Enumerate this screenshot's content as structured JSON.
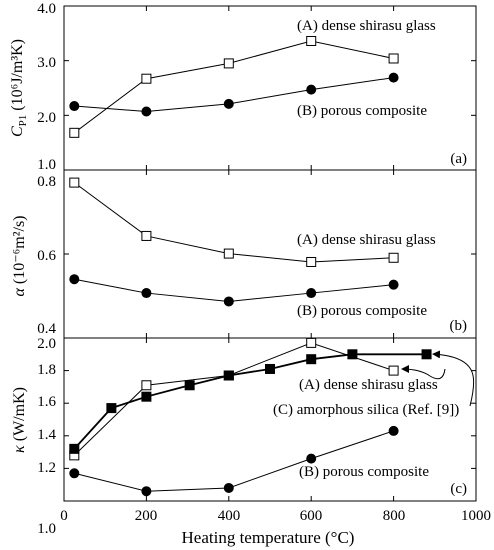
{
  "chart_data": [
    {
      "type": "line",
      "panel_label": "(a)",
      "ylabel": {
        "main": "C",
        "sub": "P1",
        "units": " (10⁶J/m³K)"
      },
      "xlim": [
        0,
        1000
      ],
      "ylim": [
        1.0,
        4.0
      ],
      "yticks": [
        "1.0",
        "2.0",
        "3.0",
        "4.0"
      ],
      "ytick_values": [
        1.0,
        2.0,
        3.0,
        4.0
      ],
      "grid": false,
      "series": [
        {
          "name": "(A) dense shirasu glass",
          "marker": "open-square",
          "x": [
            25,
            200,
            400,
            600,
            800
          ],
          "y": [
            1.68,
            2.67,
            2.95,
            3.36,
            3.04
          ]
        },
        {
          "name": "(B) porous composite",
          "marker": "filled-circle",
          "x": [
            25,
            200,
            400,
            600,
            800
          ],
          "y": [
            2.17,
            2.07,
            2.21,
            2.47,
            2.69
          ]
        }
      ]
    },
    {
      "type": "line",
      "panel_label": "(b)",
      "ylabel": {
        "main": "α",
        "units": " (10⁻⁶m²/s)"
      },
      "xlim": [
        0,
        1000
      ],
      "ylim": [
        0.4,
        0.8
      ],
      "yticks": [
        "0.4",
        "0.6",
        "0.8"
      ],
      "ytick_values": [
        0.4,
        0.6,
        0.8
      ],
      "grid": false,
      "series": [
        {
          "name": "(A) dense shirasu glass",
          "marker": "open-square",
          "x": [
            25,
            200,
            400,
            600,
            800
          ],
          "y": [
            0.77,
            0.643,
            0.601,
            0.581,
            0.591
          ]
        },
        {
          "name": "(B) porous composite",
          "marker": "filled-circle",
          "x": [
            25,
            200,
            400,
            600,
            800
          ],
          "y": [
            0.54,
            0.507,
            0.487,
            0.507,
            0.527
          ]
        }
      ]
    },
    {
      "type": "line",
      "panel_label": "(c)",
      "ylabel": {
        "main": "κ",
        "units": " (W/mK)"
      },
      "xlabel": "Heating temperature (°C)",
      "xlim": [
        0,
        1000
      ],
      "xticks": [
        "0",
        "200",
        "400",
        "600",
        "800",
        "1000"
      ],
      "xtick_values": [
        0,
        200,
        400,
        600,
        800,
        1000
      ],
      "ylim": [
        1.0,
        2.0
      ],
      "yticks": [
        "1.0",
        "1.2",
        "1.4",
        "1.6",
        "1.8",
        "2.0"
      ],
      "ytick_values": [
        1.0,
        1.2,
        1.4,
        1.6,
        1.8,
        2.0
      ],
      "grid": false,
      "series": [
        {
          "name": "(A) dense shirasu glass",
          "marker": "open-square",
          "x": [
            25,
            200,
            400,
            600,
            800
          ],
          "y": [
            1.28,
            1.71,
            1.77,
            1.97,
            1.8
          ]
        },
        {
          "name": "(C) amorphous silica (Ref. [9])",
          "marker": "filled-square",
          "x": [
            25,
            115,
            200,
            305,
            400,
            500,
            600,
            700,
            880
          ],
          "y": [
            1.32,
            1.57,
            1.64,
            1.71,
            1.77,
            1.81,
            1.87,
            1.9,
            1.9
          ]
        },
        {
          "name": "(B) porous composite",
          "marker": "filled-circle",
          "x": [
            25,
            200,
            400,
            600,
            800
          ],
          "y": [
            1.17,
            1.06,
            1.08,
            1.26,
            1.43
          ]
        }
      ]
    }
  ]
}
